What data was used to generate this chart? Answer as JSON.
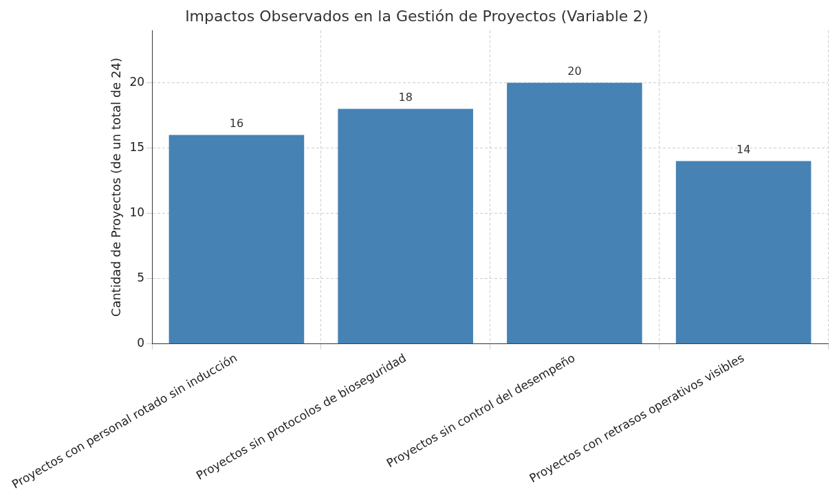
{
  "chart_data": {
    "type": "bar",
    "title": "Impactos Observados en la Gestión de Proyectos (Variable 2)",
    "ylabel": "Cantidad de Proyectos (de un total de 24)",
    "categories": [
      "Proyectos con personal rotado sin inducción",
      "Proyectos sin protocolos de bioseguridad",
      "Proyectos sin control del desempeño",
      "Proyectos con retrasos operativos visibles"
    ],
    "values": [
      16,
      18,
      20,
      14
    ],
    "color": "#4682b4",
    "ylim": [
      0,
      24
    ],
    "yticks": [
      0,
      5,
      10,
      15,
      20
    ],
    "grid": true,
    "data_labels": true
  }
}
